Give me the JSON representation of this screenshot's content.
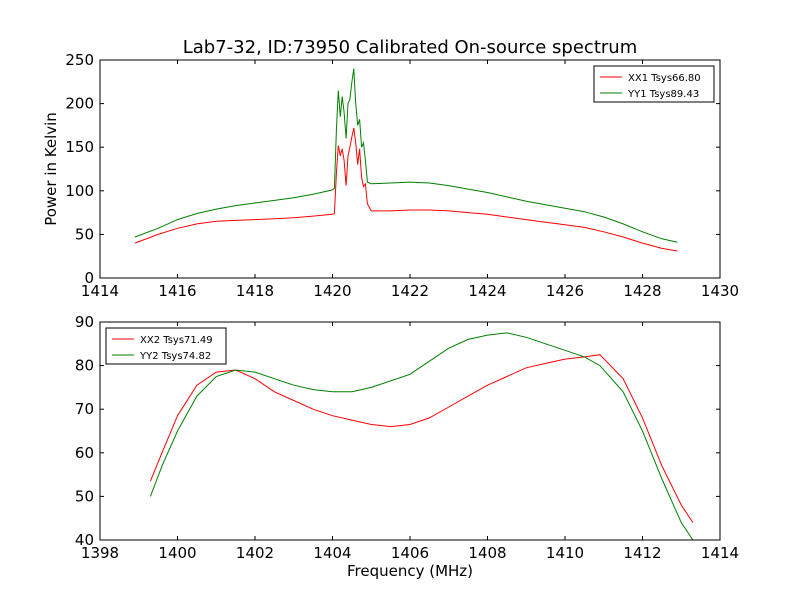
{
  "title": "Lab7-32, ID:73950 Calibrated On-source spectrum",
  "chart_data": [
    {
      "type": "line",
      "ylabel": "Power in Kelvin",
      "xlabel": "",
      "xlim": [
        1414,
        1430
      ],
      "ylim": [
        0,
        250
      ],
      "xticks": [
        1414,
        1416,
        1418,
        1420,
        1422,
        1424,
        1426,
        1428,
        1430
      ],
      "yticks": [
        0,
        50,
        100,
        150,
        200,
        250
      ],
      "legend_position": "top-right",
      "series": [
        {
          "name": "XX1 Tsys66.80",
          "color": "#ff0000",
          "x": [
            1414.9,
            1415.5,
            1416.0,
            1416.5,
            1417.0,
            1417.5,
            1418.0,
            1418.5,
            1419.0,
            1419.5,
            1420.0,
            1420.05,
            1420.1,
            1420.15,
            1420.2,
            1420.25,
            1420.3,
            1420.35,
            1420.4,
            1420.45,
            1420.5,
            1420.55,
            1420.6,
            1420.65,
            1420.7,
            1420.75,
            1420.8,
            1420.85,
            1420.9,
            1421.0,
            1421.5,
            1422.0,
            1422.5,
            1423.0,
            1423.5,
            1424.0,
            1424.5,
            1425.0,
            1425.5,
            1426.0,
            1426.5,
            1427.0,
            1427.5,
            1428.0,
            1428.5,
            1428.9
          ],
          "y": [
            40,
            50,
            57,
            62,
            65,
            66,
            67,
            68,
            69,
            71,
            73,
            74,
            120,
            152,
            140,
            148,
            135,
            106,
            140,
            150,
            162,
            172,
            155,
            130,
            148,
            115,
            105,
            108,
            85,
            77,
            77,
            78,
            78,
            77,
            75,
            73,
            70,
            67,
            64,
            61,
            58,
            53,
            47,
            40,
            34,
            31
          ]
        },
        {
          "name": "YY1 Tsys89.43",
          "color": "#008000",
          "x": [
            1414.9,
            1415.5,
            1416.0,
            1416.5,
            1417.0,
            1417.5,
            1418.0,
            1418.5,
            1419.0,
            1419.5,
            1420.0,
            1420.05,
            1420.1,
            1420.15,
            1420.2,
            1420.25,
            1420.3,
            1420.35,
            1420.4,
            1420.45,
            1420.5,
            1420.55,
            1420.6,
            1420.65,
            1420.7,
            1420.75,
            1420.8,
            1420.85,
            1420.9,
            1421.0,
            1421.5,
            1422.0,
            1422.5,
            1423.0,
            1423.5,
            1424.0,
            1424.5,
            1425.0,
            1425.5,
            1426.0,
            1426.5,
            1427.0,
            1427.5,
            1428.0,
            1428.5,
            1428.9
          ],
          "y": [
            47,
            57,
            67,
            74,
            79,
            83,
            86,
            89,
            92,
            96,
            101,
            103,
            170,
            215,
            185,
            208,
            190,
            160,
            200,
            205,
            225,
            240,
            200,
            175,
            182,
            150,
            155,
            135,
            110,
            108,
            109,
            110,
            109,
            106,
            102,
            98,
            93,
            88,
            84,
            80,
            76,
            70,
            62,
            53,
            45,
            41
          ]
        }
      ]
    },
    {
      "type": "line",
      "ylabel": "",
      "xlabel": "Frequency (MHz)",
      "xlim": [
        1398,
        1414
      ],
      "ylim": [
        40,
        90
      ],
      "xticks": [
        1398,
        1400,
        1402,
        1404,
        1406,
        1408,
        1410,
        1412,
        1414
      ],
      "yticks": [
        40,
        50,
        60,
        70,
        80,
        90
      ],
      "legend_position": "top-left",
      "series": [
        {
          "name": "XX2 Tsys71.49",
          "color": "#ff0000",
          "x": [
            1399.3,
            1399.6,
            1400.0,
            1400.5,
            1401.0,
            1401.5,
            1402.0,
            1402.5,
            1403.0,
            1403.5,
            1404.0,
            1404.5,
            1405.0,
            1405.5,
            1406.0,
            1406.5,
            1407.0,
            1407.5,
            1408.0,
            1408.5,
            1409.0,
            1409.5,
            1410.0,
            1410.5,
            1410.9,
            1411.5,
            1412.0,
            1412.5,
            1413.0,
            1413.3
          ],
          "y": [
            53.5,
            60,
            68.5,
            75.5,
            78.5,
            79,
            77,
            74,
            72,
            70,
            68.5,
            67.5,
            66.5,
            66,
            66.5,
            68,
            70.5,
            73,
            75.5,
            77.5,
            79.5,
            80.5,
            81.5,
            82,
            82.5,
            77,
            68,
            57,
            48,
            44
          ]
        },
        {
          "name": "YY2 Tsys74.82",
          "color": "#008000",
          "x": [
            1399.3,
            1399.6,
            1400.0,
            1400.5,
            1401.0,
            1401.5,
            1402.0,
            1402.5,
            1403.0,
            1403.5,
            1404.0,
            1404.5,
            1405.0,
            1405.5,
            1406.0,
            1406.5,
            1407.0,
            1407.5,
            1408.0,
            1408.5,
            1409.0,
            1409.5,
            1410.0,
            1410.5,
            1410.9,
            1411.5,
            1412.0,
            1412.5,
            1413.0,
            1413.3
          ],
          "y": [
            50,
            57,
            65,
            73,
            77.5,
            79,
            78.5,
            77,
            75.5,
            74.5,
            74,
            74,
            75,
            76.5,
            78,
            81,
            84,
            86,
            87,
            87.5,
            86.5,
            85,
            83.5,
            82,
            80,
            74,
            65,
            54,
            44,
            40
          ]
        }
      ]
    }
  ]
}
